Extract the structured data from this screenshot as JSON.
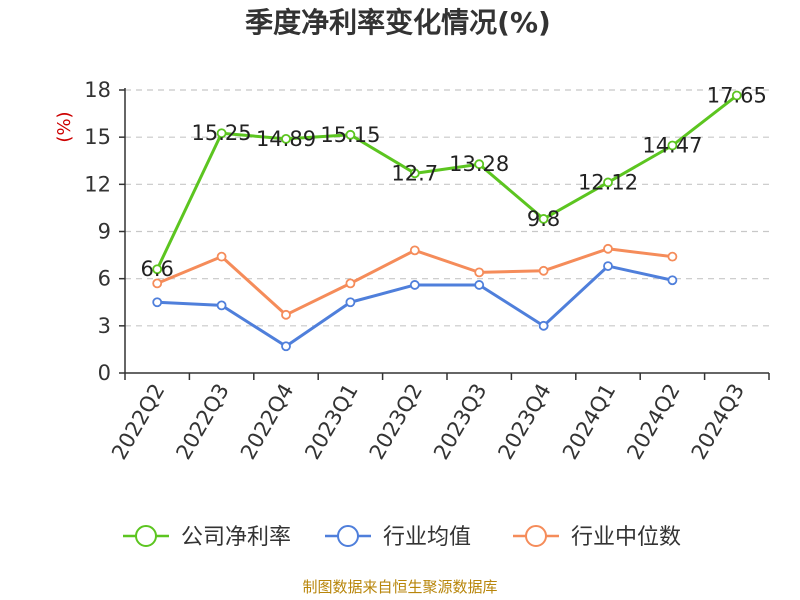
{
  "chart_data": {
    "type": "line",
    "title": "季度净利率变化情况(%)",
    "ylabel": "(%)",
    "xlabel": "",
    "categories": [
      "2022Q2",
      "2022Q3",
      "2022Q4",
      "2023Q1",
      "2023Q2",
      "2023Q3",
      "2023Q4",
      "2024Q1",
      "2024Q2",
      "2024Q3"
    ],
    "ylim": [
      0,
      18
    ],
    "yticks": [
      0,
      3,
      6,
      9,
      12,
      15,
      18
    ],
    "grid": true,
    "legend_position": "bottom",
    "series": [
      {
        "name": "公司净利率",
        "color": "#5cc520",
        "values": [
          6.6,
          15.25,
          14.89,
          15.15,
          12.7,
          13.28,
          9.8,
          12.12,
          14.47,
          17.65
        ],
        "data_labels": [
          "6.6",
          "15.25",
          "14.89",
          "15.15",
          "12.7",
          "13.28",
          "9.8",
          "12.12",
          "14.47",
          "17.65"
        ]
      },
      {
        "name": "行业均值",
        "color": "#4f7fdb",
        "values": [
          4.5,
          4.3,
          1.7,
          4.5,
          5.6,
          5.6,
          3.0,
          6.8,
          5.9,
          null
        ]
      },
      {
        "name": "行业中位数",
        "color": "#f58c5a",
        "values": [
          5.7,
          7.4,
          3.7,
          5.7,
          7.8,
          6.4,
          6.5,
          7.9,
          7.4,
          null
        ]
      }
    ],
    "source": "制图数据来自恒生聚源数据库"
  }
}
